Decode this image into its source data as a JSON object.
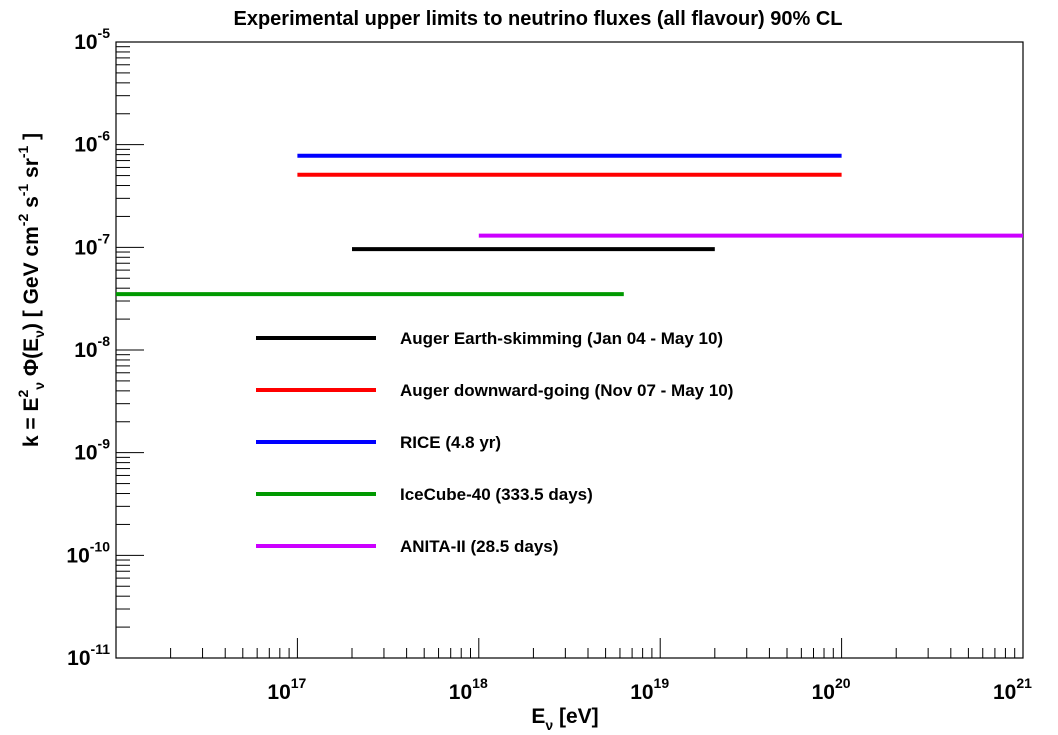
{
  "chart_data": {
    "type": "line",
    "title": "Experimental upper limits to neutrino fluxes (all flavour) 90% CL",
    "xlabel": {
      "prefix": "E",
      "sub": "ν",
      "suffix": " [eV]"
    },
    "ylabel": {
      "parts": [
        {
          "t": "k = E",
          "s": ""
        },
        {
          "t": "2",
          "s": "sup"
        },
        {
          "t": "ν",
          "s": "sub"
        },
        {
          "t": " Φ(E",
          "s": ""
        },
        {
          "t": "ν",
          "s": "sub"
        },
        {
          "t": ")    [ GeV cm",
          "s": ""
        },
        {
          "t": "-2",
          "s": "sup"
        },
        {
          "t": " s",
          "s": ""
        },
        {
          "t": "-1",
          "s": "sup"
        },
        {
          "t": " sr",
          "s": ""
        },
        {
          "t": "-1",
          "s": "sup"
        },
        {
          "t": " ]",
          "s": ""
        }
      ]
    },
    "x_scale": "log",
    "y_scale": "log",
    "xlim": [
      1e+16,
      1e+21
    ],
    "ylim": [
      1e-11,
      1e-05
    ],
    "x_ticks": [
      {
        "value": 1e+17,
        "base": "10",
        "exp": "17"
      },
      {
        "value": 1e+18,
        "base": "10",
        "exp": "18"
      },
      {
        "value": 1e+19,
        "base": "10",
        "exp": "19"
      },
      {
        "value": 1e+20,
        "base": "10",
        "exp": "20"
      },
      {
        "value": 1e+21,
        "base": "10",
        "exp": "21"
      }
    ],
    "y_ticks": [
      {
        "value": 1e-11,
        "base": "10",
        "exp": "-11"
      },
      {
        "value": 1e-10,
        "base": "10",
        "exp": "-10"
      },
      {
        "value": 1e-09,
        "base": "10",
        "exp": "-9"
      },
      {
        "value": 1e-08,
        "base": "10",
        "exp": "-8"
      },
      {
        "value": 1e-07,
        "base": "10",
        "exp": "-7"
      },
      {
        "value": 1e-06,
        "base": "10",
        "exp": "-6"
      },
      {
        "value": 1e-05,
        "base": "10",
        "exp": "-5"
      }
    ],
    "grid": false,
    "legend_position": "center",
    "series": [
      {
        "name": "Auger Earth-skimming (Jan 04 - May 10)",
        "color": "#000000",
        "x": [
          2e+17,
          2e+19
        ],
        "y": [
          9.6e-08,
          9.6e-08
        ]
      },
      {
        "name": "Auger downward-going (Nov 07 - May 10)",
        "color": "#ff0000",
        "x": [
          1e+17,
          1e+20
        ],
        "y": [
          5.1e-07,
          5.1e-07
        ]
      },
      {
        "name": "RICE (4.8 yr)",
        "color": "#0000ff",
        "x": [
          1e+17,
          1e+20
        ],
        "y": [
          7.8e-07,
          7.8e-07
        ]
      },
      {
        "name": "IceCube-40 (333.5 days)",
        "color": "#009900",
        "x": [
          1e+16,
          6.3e+18
        ],
        "y": [
          3.5e-08,
          3.5e-08
        ]
      },
      {
        "name": "ANITA-II (28.5 days)",
        "color": "#cc00ff",
        "x": [
          1e+18,
          1e+21
        ],
        "y": [
          1.3e-07,
          1.3e-07
        ]
      }
    ]
  }
}
